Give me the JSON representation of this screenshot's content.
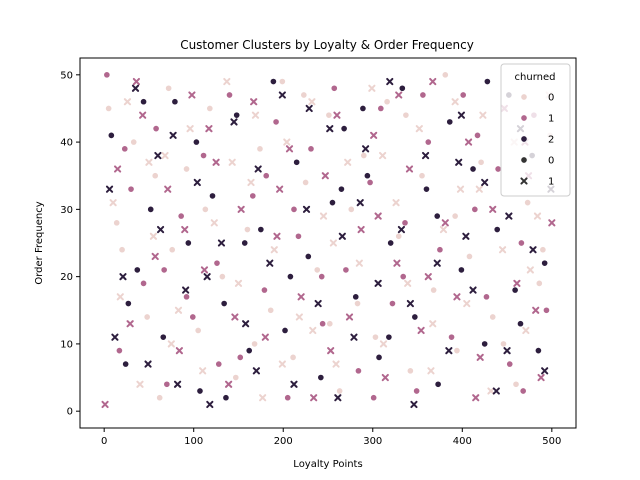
{
  "chart_data": {
    "type": "scatter",
    "title": "Customer Clusters by Loyalty & Order Frequency",
    "xlabel": "Loyalty Points",
    "ylabel": "Order Frequency",
    "xlim": [
      -27,
      527
    ],
    "ylim": [
      -2.5,
      52.5
    ],
    "xticks": [
      0,
      100,
      200,
      300,
      400,
      500
    ],
    "yticks": [
      0,
      10,
      20,
      30,
      40,
      50
    ],
    "grid": false,
    "legend": {
      "title": "churned",
      "placement": "top-right",
      "hue_entries": [
        {
          "label": "0",
          "color": "#ecd3cf"
        },
        {
          "label": "1",
          "color": "#b1678e"
        },
        {
          "label": "2",
          "color": "#2d1e3e"
        }
      ],
      "style_entries": [
        {
          "label": "0",
          "marker": "circle"
        },
        {
          "label": "1",
          "marker": "x"
        }
      ]
    },
    "hue_colors": [
      "#ecd3cf",
      "#b1678e",
      "#2d1e3e"
    ],
    "series": [
      {
        "hue": 0,
        "style": 0,
        "points": [
          [
            5,
            45
          ],
          [
            20,
            24
          ],
          [
            33,
            40
          ],
          [
            48,
            14
          ],
          [
            62,
            2
          ],
          [
            76,
            24
          ],
          [
            92,
            36
          ],
          [
            105,
            12
          ],
          [
            118,
            45
          ],
          [
            132,
            20
          ],
          [
            147,
            5
          ],
          [
            160,
            27
          ],
          [
            174,
            39
          ],
          [
            186,
            15
          ],
          [
            199,
            49
          ],
          [
            211,
            8
          ],
          [
            225,
            34
          ],
          [
            238,
            21
          ],
          [
            251,
            44
          ],
          [
            263,
            3
          ],
          [
            276,
            30
          ],
          [
            290,
            38
          ],
          [
            303,
            11
          ],
          [
            316,
            46
          ],
          [
            329,
            26
          ],
          [
            342,
            6
          ],
          [
            355,
            35
          ],
          [
            368,
            18
          ],
          [
            381,
            50
          ],
          [
            394,
            9
          ],
          [
            408,
            23
          ],
          [
            421,
            37
          ],
          [
            434,
            14
          ],
          [
            447,
            45
          ],
          [
            460,
            4
          ],
          [
            473,
            31
          ],
          [
            486,
            19
          ],
          [
            498,
            41
          ],
          [
            14,
            28
          ],
          [
            57,
            35
          ],
          [
            113,
            30
          ],
          [
            168,
            10
          ],
          [
            223,
            47
          ],
          [
            283,
            16
          ],
          [
            337,
            44
          ],
          [
            392,
            29
          ],
          [
            446,
            10
          ],
          [
            490,
            24
          ],
          [
            72,
            48
          ],
          [
            252,
            13
          ]
        ]
      },
      {
        "hue": 1,
        "style": 0,
        "points": [
          [
            3,
            50
          ],
          [
            17,
            9
          ],
          [
            30,
            33
          ],
          [
            44,
            19
          ],
          [
            58,
            42
          ],
          [
            70,
            4
          ],
          [
            86,
            29
          ],
          [
            99,
            14
          ],
          [
            111,
            38
          ],
          [
            126,
            22
          ],
          [
            140,
            47
          ],
          [
            152,
            8
          ],
          [
            166,
            32
          ],
          [
            179,
            18
          ],
          [
            192,
            43
          ],
          [
            205,
            2
          ],
          [
            217,
            26
          ],
          [
            231,
            39
          ],
          [
            244,
            13
          ],
          [
            257,
            48
          ],
          [
            270,
            21
          ],
          [
            284,
            6
          ],
          [
            297,
            34
          ],
          [
            309,
            45
          ],
          [
            322,
            16
          ],
          [
            336,
            28
          ],
          [
            349,
            3
          ],
          [
            362,
            40
          ],
          [
            375,
            24
          ],
          [
            388,
            11
          ],
          [
            401,
            47
          ],
          [
            414,
            30
          ],
          [
            427,
            17
          ],
          [
            440,
            36
          ],
          [
            453,
            7
          ],
          [
            466,
            25
          ],
          [
            480,
            44
          ],
          [
            494,
            15
          ],
          [
            23,
            39
          ],
          [
            67,
            21
          ],
          [
            128,
            7
          ],
          [
            181,
            35
          ],
          [
            243,
            20
          ],
          [
            301,
            2
          ],
          [
            356,
            47
          ],
          [
            417,
            41
          ],
          [
            468,
            3
          ],
          [
            92,
            17
          ],
          [
            212,
            30
          ],
          [
            334,
            20
          ]
        ]
      },
      {
        "hue": 2,
        "style": 0,
        "points": [
          [
            8,
            41
          ],
          [
            24,
            7
          ],
          [
            37,
            21
          ],
          [
            52,
            30
          ],
          [
            66,
            11
          ],
          [
            79,
            46
          ],
          [
            94,
            25
          ],
          [
            107,
            3
          ],
          [
            121,
            32
          ],
          [
            134,
            16
          ],
          [
            148,
            44
          ],
          [
            162,
            9
          ],
          [
            175,
            27
          ],
          [
            189,
            49
          ],
          [
            202,
            12
          ],
          [
            215,
            37
          ],
          [
            228,
            23
          ],
          [
            242,
            5
          ],
          [
            255,
            31
          ],
          [
            268,
            42
          ],
          [
            281,
            17
          ],
          [
            294,
            35
          ],
          [
            307,
            8
          ],
          [
            320,
            25
          ],
          [
            333,
            48
          ],
          [
            347,
            14
          ],
          [
            360,
            33
          ],
          [
            373,
            4
          ],
          [
            386,
            43
          ],
          [
            399,
            21
          ],
          [
            412,
            36
          ],
          [
            425,
            10
          ],
          [
            439,
            27
          ],
          [
            452,
            47
          ],
          [
            465,
            13
          ],
          [
            478,
            38
          ],
          [
            492,
            22
          ],
          [
            44,
            46
          ],
          [
            103,
            40
          ],
          [
            157,
            25
          ],
          [
            208,
            20
          ],
          [
            265,
            33
          ],
          [
            318,
            11
          ],
          [
            372,
            29
          ],
          [
            428,
            49
          ],
          [
            485,
            9
          ],
          [
            136,
            2
          ],
          [
            289,
            45
          ],
          [
            459,
            18
          ],
          [
            27,
            16
          ]
        ]
      },
      {
        "hue": 0,
        "style": 1,
        "points": [
          [
            10,
            31
          ],
          [
            26,
            46
          ],
          [
            40,
            4
          ],
          [
            55,
            26
          ],
          [
            68,
            38
          ],
          [
            83,
            15
          ],
          [
            96,
            42
          ],
          [
            110,
            6
          ],
          [
            123,
            28
          ],
          [
            137,
            49
          ],
          [
            150,
            19
          ],
          [
            164,
            34
          ],
          [
            177,
            2
          ],
          [
            190,
            24
          ],
          [
            204,
            40
          ],
          [
            218,
            14
          ],
          [
            232,
            46
          ],
          [
            245,
            29
          ],
          [
            259,
            7
          ],
          [
            272,
            37
          ],
          [
            285,
            22
          ],
          [
            299,
            48
          ],
          [
            312,
            10
          ],
          [
            326,
            31
          ],
          [
            339,
            19
          ],
          [
            352,
            42
          ],
          [
            365,
            6
          ],
          [
            379,
            27
          ],
          [
            392,
            46
          ],
          [
            405,
            16
          ],
          [
            419,
            33
          ],
          [
            432,
            3
          ],
          [
            445,
            24
          ],
          [
            458,
            40
          ],
          [
            471,
            12
          ],
          [
            484,
            29
          ],
          [
            497,
            47
          ],
          [
            18,
            17
          ],
          [
            75,
            10
          ],
          [
            143,
            37
          ],
          [
            199,
            7
          ],
          [
            256,
            25
          ],
          [
            311,
            38
          ],
          [
            367,
            13
          ],
          [
            423,
            44
          ],
          [
            476,
            21
          ],
          [
            50,
            37
          ],
          [
            233,
            12
          ],
          [
            398,
            33
          ],
          [
            169,
            44
          ]
        ]
      },
      {
        "hue": 1,
        "style": 1,
        "points": [
          [
            1,
            1
          ],
          [
            15,
            36
          ],
          [
            29,
            13
          ],
          [
            43,
            44
          ],
          [
            57,
            23
          ],
          [
            71,
            33
          ],
          [
            84,
            9
          ],
          [
            98,
            47
          ],
          [
            112,
            21
          ],
          [
            125,
            37
          ],
          [
            139,
            4
          ],
          [
            153,
            30
          ],
          [
            167,
            46
          ],
          [
            180,
            11
          ],
          [
            193,
            26
          ],
          [
            207,
            39
          ],
          [
            220,
            17
          ],
          [
            234,
            2
          ],
          [
            247,
            35
          ],
          [
            260,
            44
          ],
          [
            274,
            14
          ],
          [
            287,
            27
          ],
          [
            301,
            41
          ],
          [
            314,
            5
          ],
          [
            327,
            22
          ],
          [
            341,
            36
          ],
          [
            354,
            12
          ],
          [
            367,
            49
          ],
          [
            381,
            28
          ],
          [
            394,
            17
          ],
          [
            407,
            40
          ],
          [
            420,
            8
          ],
          [
            434,
            30
          ],
          [
            447,
            45
          ],
          [
            461,
            19
          ],
          [
            474,
            35
          ],
          [
            488,
            5
          ],
          [
            500,
            28
          ],
          [
            36,
            49
          ],
          [
            90,
            27
          ],
          [
            146,
            14
          ],
          [
            196,
            33
          ],
          [
            253,
            9
          ],
          [
            306,
            29
          ],
          [
            362,
            20
          ],
          [
            415,
            2
          ],
          [
            470,
            40
          ],
          [
            117,
            42
          ],
          [
            329,
            47
          ],
          [
            482,
            15
          ]
        ]
      },
      {
        "hue": 2,
        "style": 1,
        "points": [
          [
            6,
            33
          ],
          [
            21,
            20
          ],
          [
            35,
            48
          ],
          [
            49,
            7
          ],
          [
            63,
            27
          ],
          [
            77,
            41
          ],
          [
            91,
            18
          ],
          [
            104,
            34
          ],
          [
            118,
            1
          ],
          [
            131,
            25
          ],
          [
            145,
            43
          ],
          [
            158,
            13
          ],
          [
            172,
            36
          ],
          [
            185,
            22
          ],
          [
            199,
            47
          ],
          [
            212,
            4
          ],
          [
            226,
            30
          ],
          [
            239,
            16
          ],
          [
            252,
            42
          ],
          [
            266,
            26
          ],
          [
            279,
            11
          ],
          [
            292,
            39
          ],
          [
            306,
            19
          ],
          [
            319,
            49
          ],
          [
            332,
            27
          ],
          [
            346,
            1
          ],
          [
            359,
            38
          ],
          [
            372,
            22
          ],
          [
            385,
            9
          ],
          [
            399,
            44
          ],
          [
            412,
            18
          ],
          [
            425,
            34
          ],
          [
            438,
            3
          ],
          [
            452,
            29
          ],
          [
            465,
            42
          ],
          [
            479,
            24
          ],
          [
            492,
            6
          ],
          [
            12,
            11
          ],
          [
            60,
            38
          ],
          [
            115,
            20
          ],
          [
            170,
            6
          ],
          [
            229,
            45
          ],
          [
            286,
            31
          ],
          [
            342,
            16
          ],
          [
            396,
            37
          ],
          [
            450,
            9
          ],
          [
            499,
            33
          ],
          [
            82,
            4
          ],
          [
            261,
            2
          ],
          [
            404,
            26
          ]
        ]
      }
    ]
  }
}
